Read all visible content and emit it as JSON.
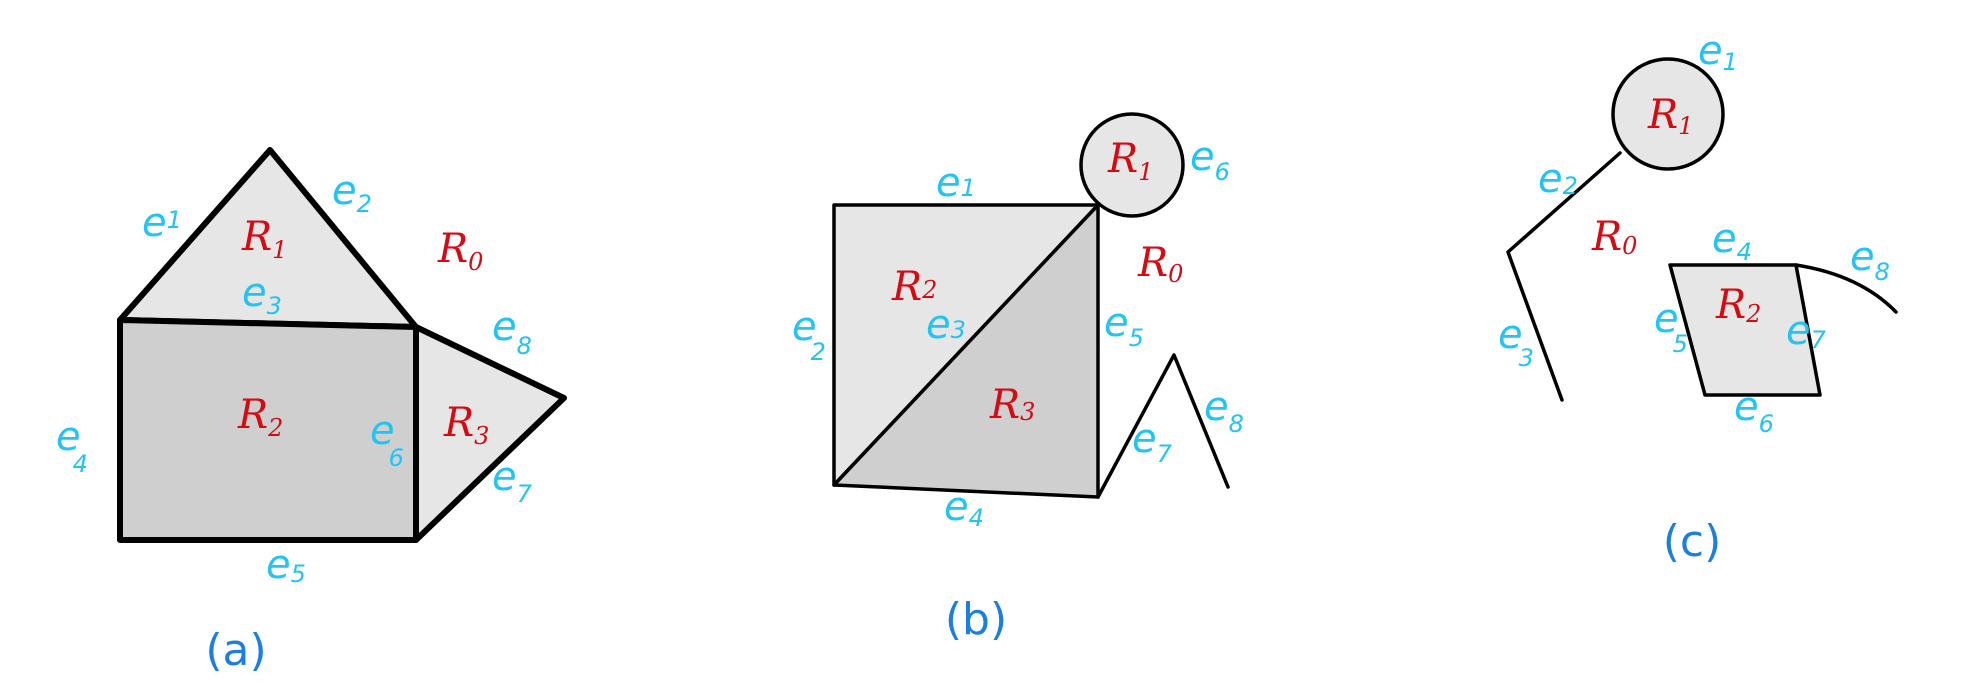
{
  "colors": {
    "edge_label": "#21c4f2",
    "region_label": "#d40b12",
    "caption": "#1a7fe0",
    "light_fill": "#e6e6e6",
    "dark_fill": "#cfcfcf",
    "stroke": "#000000"
  },
  "panels": [
    {
      "caption": "(a)",
      "regions": [
        {
          "letter": "R",
          "sub": "0"
        },
        {
          "letter": "R",
          "sub": "1"
        },
        {
          "letter": "R",
          "sub": "2"
        },
        {
          "letter": "R",
          "sub": "3"
        }
      ],
      "edges": [
        {
          "letter": "e",
          "sub": "1"
        },
        {
          "letter": "e",
          "sub": "2"
        },
        {
          "letter": "e",
          "sub": "3"
        },
        {
          "letter": "e",
          "sub": "4"
        },
        {
          "letter": "e",
          "sub": "5"
        },
        {
          "letter": "e",
          "sub": "6"
        },
        {
          "letter": "e",
          "sub": "7"
        },
        {
          "letter": "e",
          "sub": "8"
        }
      ]
    },
    {
      "caption": "(b)",
      "regions": [
        {
          "letter": "R",
          "sub": "0"
        },
        {
          "letter": "R",
          "sub": "1"
        },
        {
          "letter": "R",
          "sub": "2"
        },
        {
          "letter": "R",
          "sub": "3"
        }
      ],
      "edges": [
        {
          "letter": "e",
          "sub": "1"
        },
        {
          "letter": "e",
          "sub": "2"
        },
        {
          "letter": "e",
          "sub": "3"
        },
        {
          "letter": "e",
          "sub": "4"
        },
        {
          "letter": "e",
          "sub": "5"
        },
        {
          "letter": "e",
          "sub": "6"
        },
        {
          "letter": "e",
          "sub": "7"
        },
        {
          "letter": "e",
          "sub": "8"
        }
      ]
    },
    {
      "caption": "(c)",
      "regions": [
        {
          "letter": "R",
          "sub": "0"
        },
        {
          "letter": "R",
          "sub": "1"
        },
        {
          "letter": "R",
          "sub": "2"
        }
      ],
      "edges": [
        {
          "letter": "e",
          "sub": "1"
        },
        {
          "letter": "e",
          "sub": "2"
        },
        {
          "letter": "e",
          "sub": "3"
        },
        {
          "letter": "e",
          "sub": "4"
        },
        {
          "letter": "e",
          "sub": "5"
        },
        {
          "letter": "e",
          "sub": "6"
        },
        {
          "letter": "e",
          "sub": "7"
        },
        {
          "letter": "e",
          "sub": "8"
        }
      ]
    }
  ]
}
